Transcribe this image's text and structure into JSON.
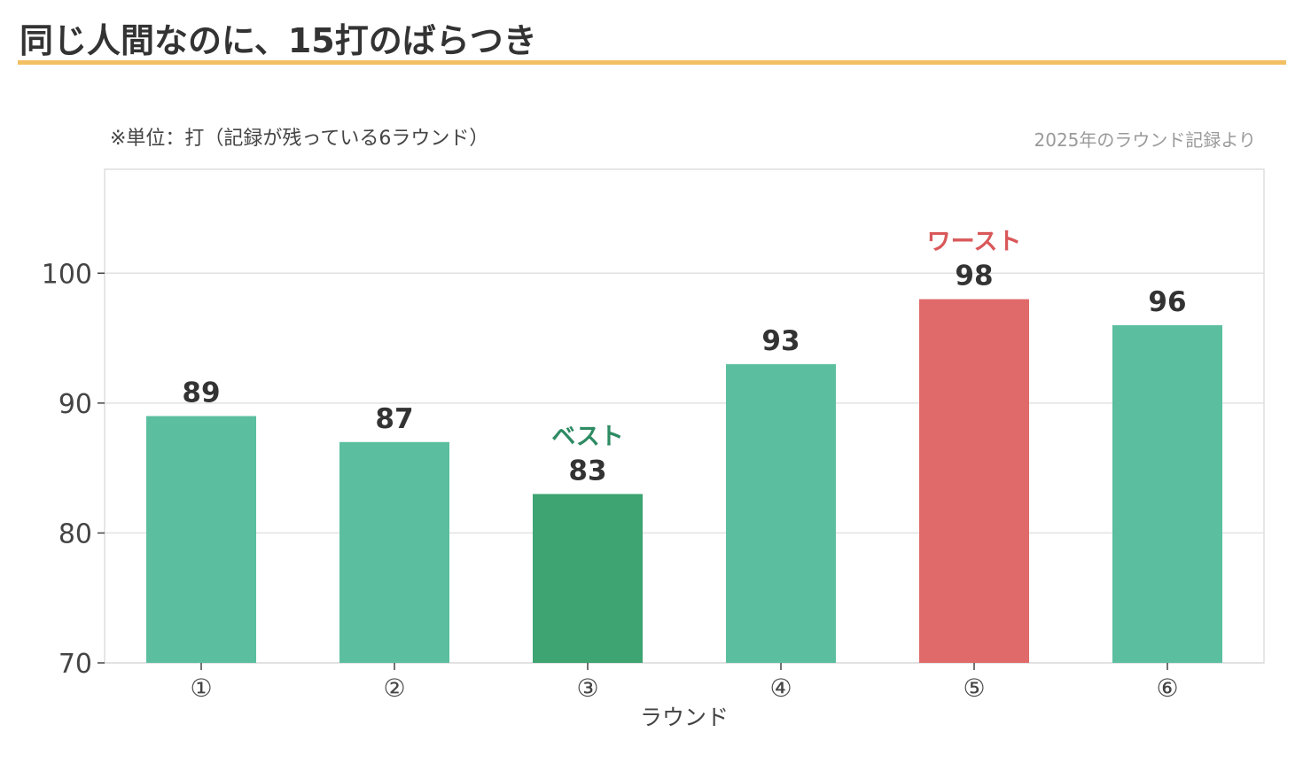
{
  "header": {
    "title": "同じ人間なのに、15打のばらつき"
  },
  "notes": {
    "unit": "※単位：打（記録が残っている6ラウンド）",
    "source": "2025年のラウンド記録より"
  },
  "colors": {
    "bar_default": "#5bbf9f",
    "bar_best": "#3da472",
    "bar_worst": "#e06a69",
    "annot_best": "#2e8b63",
    "annot_worst": "#d9585a",
    "title_rule": "#f2c063"
  },
  "chart_data": {
    "type": "bar",
    "categories": [
      "①",
      "②",
      "③",
      "④",
      "⑤",
      "⑥"
    ],
    "values": [
      89,
      87,
      83,
      93,
      98,
      96
    ],
    "xlabel": "ラウンド",
    "ylabel": "",
    "ylim": [
      70,
      108
    ],
    "yticks": [
      70,
      80,
      90,
      100
    ],
    "grid": true,
    "legend": "none",
    "annotations": [
      {
        "category_index": 2,
        "text": "ベスト",
        "role": "best"
      },
      {
        "category_index": 4,
        "text": "ワースト",
        "role": "worst"
      }
    ]
  }
}
